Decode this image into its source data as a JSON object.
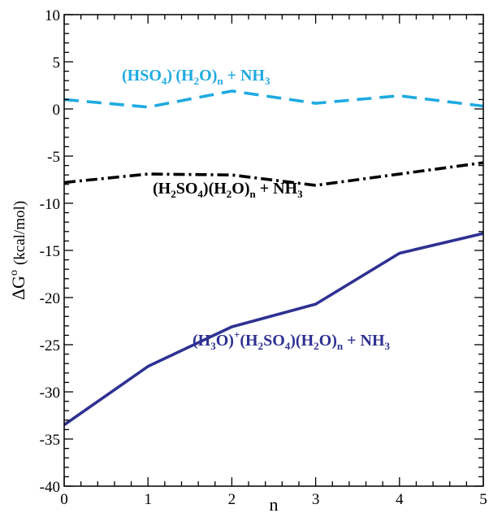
{
  "chart_data": {
    "type": "line",
    "title": "",
    "xlabel": "n",
    "ylabel": "ΔG",
    "ylabel_superscript": "o",
    "ylabel_unit": "(kcal/mol)",
    "xlim": [
      0,
      5
    ],
    "ylim": [
      -40,
      10
    ],
    "xticks": [
      0,
      1,
      2,
      3,
      4,
      5
    ],
    "yticks": [
      -40,
      -35,
      -30,
      -25,
      -20,
      -15,
      -10,
      -5,
      0,
      5,
      10
    ],
    "grid": false,
    "legend": "none",
    "x": [
      0,
      1,
      2,
      3,
      4,
      5
    ],
    "series": [
      {
        "id": "hso4",
        "values": [
          1.0,
          0.2,
          1.9,
          0.6,
          1.4,
          0.3
        ],
        "color": "#1EAAE0",
        "dash": "dashed"
      },
      {
        "id": "h2so4",
        "values": [
          -7.8,
          -6.9,
          -7.0,
          -8.1,
          -6.9,
          -5.7
        ],
        "color": "#000000",
        "dash": "dash-dot"
      },
      {
        "id": "h3o",
        "values": [
          -33.5,
          -27.3,
          -23.1,
          -20.7,
          -15.3,
          -13.2
        ],
        "color": "#2E3192",
        "dash": "solid"
      }
    ],
    "annotations": [
      {
        "id": "hso4-label",
        "color": "#1EAAE0",
        "parts": [
          {
            "t": "(HSO",
            "s": ""
          },
          {
            "t": "4",
            "s": "sub"
          },
          {
            "t": ")",
            "s": ""
          },
          {
            "t": "-",
            "s": "sup"
          },
          {
            "t": "(H",
            "s": ""
          },
          {
            "t": "2",
            "s": "sub"
          },
          {
            "t": "O)",
            "s": ""
          },
          {
            "t": "n",
            "s": "sub"
          },
          {
            "t": " + NH",
            "s": ""
          },
          {
            "t": "3",
            "s": "sub"
          }
        ]
      },
      {
        "id": "h2so4-label",
        "color": "#000000",
        "parts": [
          {
            "t": "(H",
            "s": ""
          },
          {
            "t": "2",
            "s": "sub"
          },
          {
            "t": "SO",
            "s": ""
          },
          {
            "t": "4",
            "s": "sub"
          },
          {
            "t": ")(H",
            "s": ""
          },
          {
            "t": "2",
            "s": "sub"
          },
          {
            "t": "O)",
            "s": ""
          },
          {
            "t": "n",
            "s": "sub"
          },
          {
            "t": " + NH",
            "s": ""
          },
          {
            "t": "3",
            "s": "sub"
          }
        ]
      },
      {
        "id": "h3o-label",
        "color": "#2E3192",
        "parts": [
          {
            "t": "(H",
            "s": ""
          },
          {
            "t": "3",
            "s": "sub"
          },
          {
            "t": "O)",
            "s": ""
          },
          {
            "t": "+",
            "s": "sup"
          },
          {
            "t": "(H",
            "s": ""
          },
          {
            "t": "2",
            "s": "sub"
          },
          {
            "t": "SO",
            "s": ""
          },
          {
            "t": "4",
            "s": "sub"
          },
          {
            "t": ")(H",
            "s": ""
          },
          {
            "t": "2",
            "s": "sub"
          },
          {
            "t": "O)",
            "s": ""
          },
          {
            "t": "n",
            "s": "sub"
          },
          {
            "t": " + NH",
            "s": ""
          },
          {
            "t": "3",
            "s": "sub"
          }
        ]
      }
    ]
  }
}
